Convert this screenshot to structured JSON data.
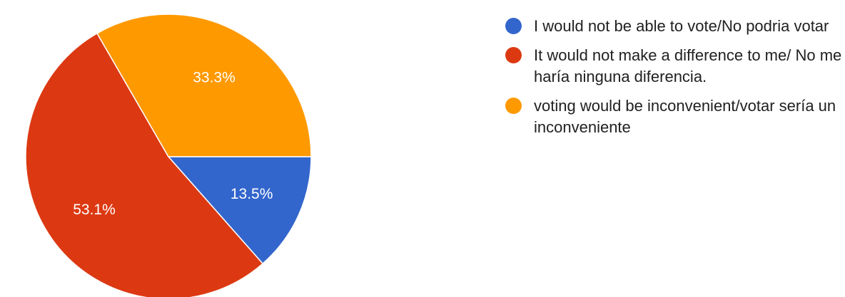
{
  "chart_data": {
    "type": "pie",
    "slices": [
      {
        "label": "I would not be able to vote/No podria votar",
        "value": 13.5,
        "display": "13.5%",
        "color": "#3366cc"
      },
      {
        "label": "It would not make a difference to me/ No me haría ninguna diferencia.",
        "value": 53.1,
        "display": "53.1%",
        "color": "#dc3912"
      },
      {
        "label": "voting would be inconvenient/votar sería un inconveniente",
        "value": 33.3,
        "display": "33.3%",
        "color": "#ff9900"
      }
    ],
    "legend_position": "right"
  },
  "legend": {
    "items": [
      {
        "label": "I would not be able to vote/No podria votar",
        "color": "#3366cc"
      },
      {
        "label": "It would not make a difference to me/ No me haría ninguna diferencia.",
        "color": "#dc3912"
      },
      {
        "label": "voting would be inconvenient/votar sería un inconveniente",
        "color": "#ff9900"
      }
    ]
  }
}
